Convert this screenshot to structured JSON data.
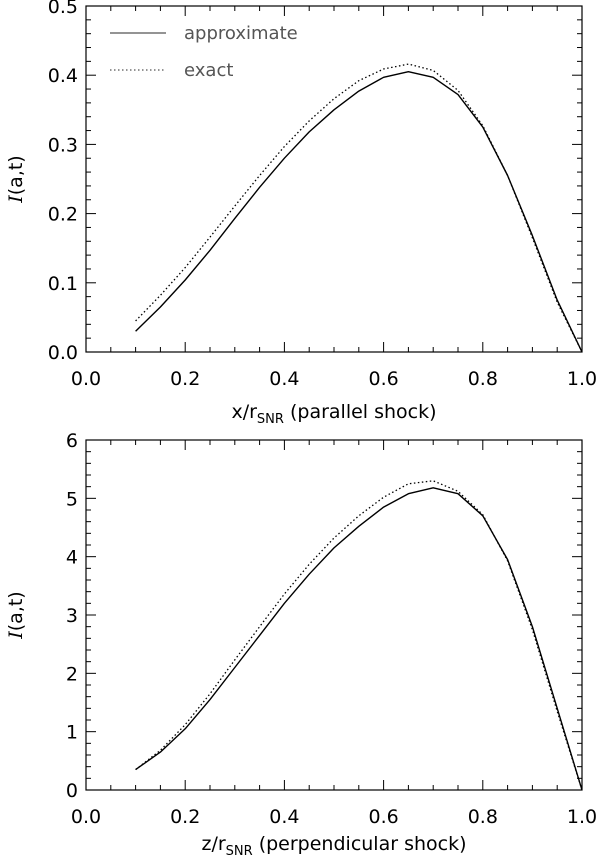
{
  "chart_data": [
    {
      "type": "line",
      "title": "",
      "xlabel_main": "x/r",
      "xlabel_sub": "SNR",
      "xlabel_suffix": " (parallel shock)",
      "ylabel_main": "I",
      "ylabel_suffix": "(a,t)",
      "xlim": [
        0.0,
        1.0
      ],
      "ylim": [
        0.0,
        0.5
      ],
      "xticks": [
        "0.0",
        "0.2",
        "0.4",
        "0.6",
        "0.8",
        "1.0"
      ],
      "yticks": [
        "0.0",
        "0.1",
        "0.2",
        "0.3",
        "0.4",
        "0.5"
      ],
      "legend": {
        "position": "top-left",
        "entries": [
          "approximate",
          "exact"
        ]
      },
      "series": [
        {
          "name": "approximate",
          "style": "solid",
          "x": [
            0.1,
            0.15,
            0.2,
            0.25,
            0.3,
            0.35,
            0.4,
            0.45,
            0.5,
            0.55,
            0.6,
            0.65,
            0.7,
            0.75,
            0.8,
            0.85,
            0.9,
            0.95,
            1.0
          ],
          "y": [
            0.03,
            0.065,
            0.104,
            0.147,
            0.193,
            0.238,
            0.28,
            0.318,
            0.35,
            0.377,
            0.397,
            0.405,
            0.397,
            0.372,
            0.325,
            0.255,
            0.168,
            0.075,
            0.0
          ]
        },
        {
          "name": "exact",
          "style": "dotted",
          "x": [
            0.1,
            0.15,
            0.2,
            0.25,
            0.3,
            0.35,
            0.4,
            0.45,
            0.5,
            0.55,
            0.6,
            0.65,
            0.7,
            0.75,
            0.8,
            0.85,
            0.9,
            0.95,
            1.0
          ],
          "y": [
            0.045,
            0.082,
            0.122,
            0.166,
            0.211,
            0.255,
            0.297,
            0.334,
            0.366,
            0.392,
            0.409,
            0.416,
            0.407,
            0.378,
            0.327,
            0.255,
            0.165,
            0.072,
            0.0
          ]
        }
      ]
    },
    {
      "type": "line",
      "title": "",
      "xlabel_main": "z/r",
      "xlabel_sub": "SNR",
      "xlabel_suffix": " (perpendicular shock)",
      "ylabel_main": "I",
      "ylabel_suffix": "(a,t)",
      "xlim": [
        0.0,
        1.0
      ],
      "ylim": [
        0,
        6
      ],
      "xticks": [
        "0.0",
        "0.2",
        "0.4",
        "0.6",
        "0.8",
        "1.0"
      ],
      "yticks": [
        "0",
        "1",
        "2",
        "3",
        "4",
        "5",
        "6"
      ],
      "series": [
        {
          "name": "approximate",
          "style": "solid",
          "x": [
            0.1,
            0.15,
            0.2,
            0.25,
            0.3,
            0.35,
            0.4,
            0.45,
            0.5,
            0.55,
            0.6,
            0.65,
            0.7,
            0.75,
            0.8,
            0.85,
            0.9,
            0.95,
            1.0
          ],
          "y": [
            0.35,
            0.65,
            1.05,
            1.55,
            2.1,
            2.65,
            3.2,
            3.7,
            4.15,
            4.52,
            4.85,
            5.08,
            5.18,
            5.08,
            4.7,
            3.95,
            2.8,
            1.4,
            0.0
          ]
        },
        {
          "name": "exact",
          "style": "dotted",
          "x": [
            0.1,
            0.15,
            0.2,
            0.25,
            0.3,
            0.35,
            0.4,
            0.45,
            0.5,
            0.55,
            0.6,
            0.65,
            0.7,
            0.75,
            0.8,
            0.85,
            0.9,
            0.95,
            1.0
          ],
          "y": [
            0.35,
            0.68,
            1.12,
            1.65,
            2.23,
            2.8,
            3.36,
            3.87,
            4.32,
            4.7,
            5.02,
            5.25,
            5.3,
            5.12,
            4.72,
            3.93,
            2.75,
            1.35,
            0.0
          ]
        }
      ]
    }
  ]
}
